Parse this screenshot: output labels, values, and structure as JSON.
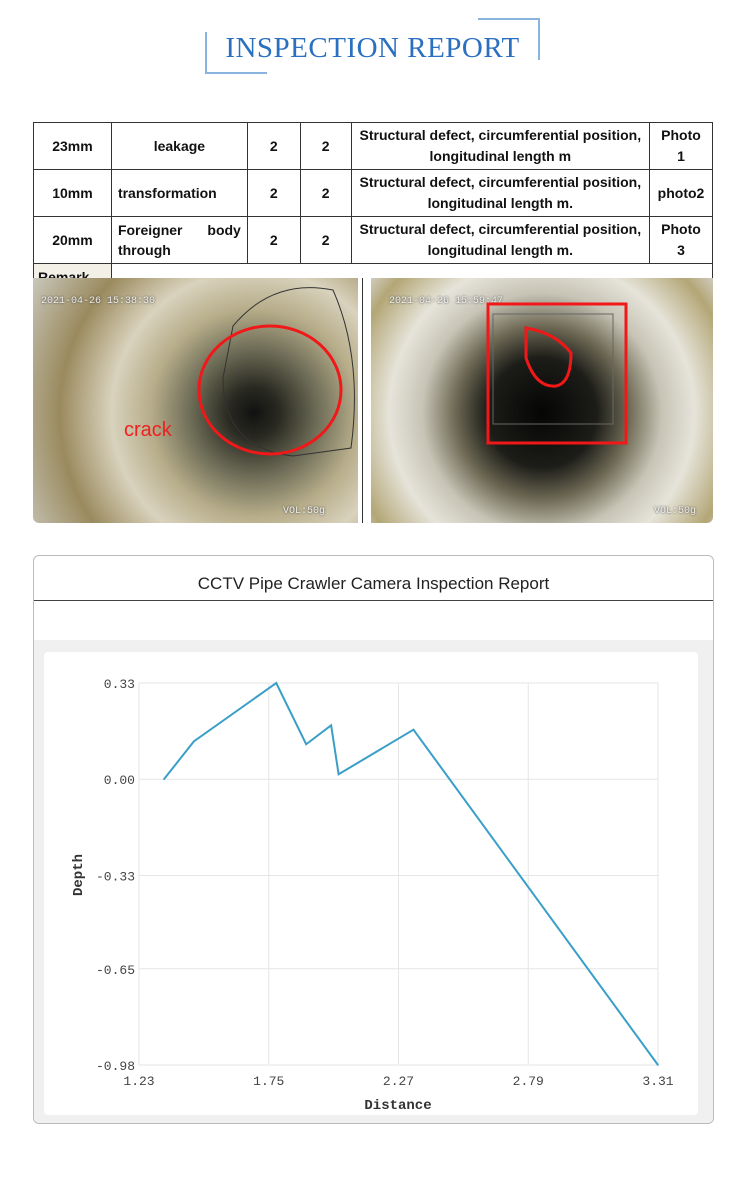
{
  "title": "INSPECTION REPORT",
  "table": {
    "rows": [
      {
        "size": "23mm",
        "defect": "leakage",
        "a": "2",
        "b": "2",
        "desc1": "Structural defect, circumferential position,",
        "desc2": "longitudinal length m",
        "photo1": "Photo",
        "photo2": "1"
      },
      {
        "size": "10mm",
        "defect": "transformation",
        "a": "2",
        "b": "2",
        "desc1": "Structural defect, circumferential position,",
        "desc2": "longitudinal length m.",
        "photo1": "photo2",
        "photo2": ""
      },
      {
        "size": "20mm",
        "defect": "Foreigner body through",
        "a": "2",
        "b": "2",
        "desc1": "Structural defect, circumferential position,",
        "desc2": "longitudinal length m.",
        "photo1": "Photo",
        "photo2": "3"
      }
    ],
    "remark_label": "Remark",
    "remark_value": ""
  },
  "photos": [
    {
      "timestamp": "2021-04-26 15:38:30",
      "label": "crack",
      "vol": "VOL:50g"
    },
    {
      "timestamp": "2021-04-26 15:59:47",
      "vol": "VOL:50g"
    }
  ],
  "chart_card": {
    "title": "CCTV Pipe Crawler Camera Inspection Report"
  },
  "chart_data": {
    "type": "line",
    "xlabel": "Distance",
    "ylabel": "Depth",
    "xlim": [
      1.23,
      3.31
    ],
    "ylim": [
      -0.98,
      0.33
    ],
    "xticks": [
      "1.23",
      "1.75",
      "2.27",
      "2.79",
      "3.31"
    ],
    "yticks": [
      "0.33",
      "0.00",
      "-0.33",
      "-0.65",
      "-0.98"
    ],
    "grid": true,
    "color": "#3a9fc8",
    "series": [
      {
        "name": "Depth",
        "x": [
          1.33,
          1.45,
          1.78,
          1.9,
          2.0,
          2.03,
          2.33,
          3.31
        ],
        "y": [
          0.0,
          0.13,
          0.33,
          0.12,
          0.185,
          0.017,
          0.17,
          -0.98
        ]
      }
    ]
  }
}
